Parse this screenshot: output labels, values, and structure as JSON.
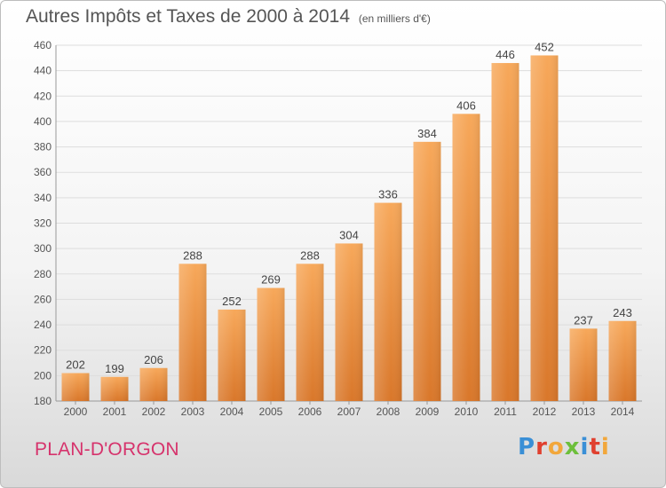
{
  "header": {
    "title": "Autres Impôts et Taxes de 2000 à 2014",
    "unit": "(en milliers d'€)"
  },
  "footer": {
    "place": "PLAN-D'ORGON",
    "logo_text": "Proxiti",
    "logo_colors": [
      "#3a8fd6",
      "#e0402f",
      "#f2a73b",
      "#6dbf3b",
      "#3a8fd6",
      "#e0402f",
      "#f2a73b"
    ]
  },
  "colors": {
    "bar_top": "#f7a85a",
    "bar_bottom": "#d9772a",
    "text": "#555555",
    "grid": "#dddddd"
  },
  "chart_data": {
    "type": "bar",
    "title": "Autres Impôts et Taxes de 2000 à 2014",
    "subtitle": "(en milliers d'€)",
    "categories": [
      "2000",
      "2001",
      "2002",
      "2003",
      "2004",
      "2005",
      "2006",
      "2007",
      "2008",
      "2009",
      "2010",
      "2011",
      "2012",
      "2013",
      "2014"
    ],
    "values": [
      202,
      199,
      206,
      288,
      252,
      269,
      288,
      304,
      336,
      384,
      406,
      446,
      452,
      237,
      243
    ],
    "ylim": [
      180,
      460
    ],
    "yticks": [
      180,
      200,
      220,
      240,
      260,
      280,
      300,
      320,
      340,
      360,
      380,
      400,
      420,
      440,
      460
    ],
    "grid": true
  }
}
